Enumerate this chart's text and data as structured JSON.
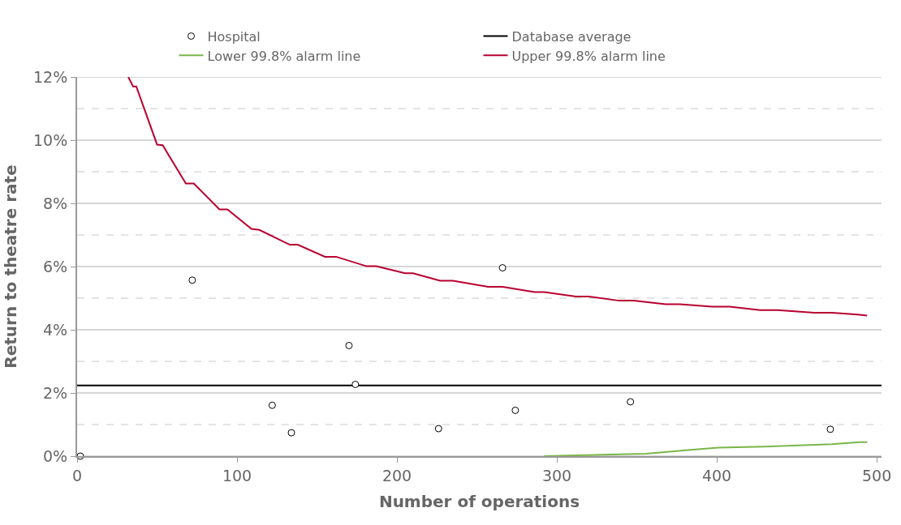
{
  "chart_data": {
    "type": "line",
    "xlabel": "Number of operations",
    "ylabel": "Return to theatre rate",
    "xlim": [
      0,
      503
    ],
    "xticks": [
      0,
      100,
      200,
      300,
      400,
      500
    ],
    "ylim": [
      0,
      12
    ],
    "yticks": [
      {
        "value": 0,
        "label": "0%"
      },
      {
        "value": 1,
        "label": null
      },
      {
        "value": 2,
        "label": "2%"
      },
      {
        "value": 3,
        "label": null
      },
      {
        "value": 4,
        "label": "4%"
      },
      {
        "value": 5,
        "label": null
      },
      {
        "value": 6,
        "label": "6%"
      },
      {
        "value": 7,
        "label": null
      },
      {
        "value": 8,
        "label": "8%"
      },
      {
        "value": 9,
        "label": null
      },
      {
        "value": 10,
        "label": "10%"
      },
      {
        "value": 11,
        "label": null
      },
      {
        "value": 12,
        "label": "12%"
      }
    ],
    "grid": "y",
    "legend": "top",
    "series": [
      {
        "name": "Hospital",
        "type": "scatter",
        "marker": "circle",
        "color": "#ffffff",
        "x": [
          2,
          72,
          122,
          134,
          170,
          174,
          226,
          266,
          274,
          346,
          471
        ],
        "values": [
          0,
          5.57,
          1.61,
          0.74,
          3.5,
          2.27,
          0.87,
          5.96,
          1.45,
          1.72,
          0.85
        ]
      },
      {
        "name": "Database average",
        "color": "#000000",
        "x": [
          0,
          503
        ],
        "values": [
          2.24,
          2.24
        ]
      },
      {
        "name": "Lower 99.8% alarm line",
        "color": "#7ab648",
        "x": [
          292,
          356,
          382,
          401,
          430,
          472,
          489,
          494
        ],
        "values": [
          0,
          0.08,
          0.19,
          0.27,
          0.3,
          0.38,
          0.44,
          0.44
        ]
      },
      {
        "name": "Upper 99.8% alarm line",
        "color": "#b8002e",
        "x": [
          32,
          35,
          37,
          50,
          53.5,
          68,
          73,
          89,
          94,
          109,
          114,
          133,
          138,
          155,
          162,
          181,
          187,
          205,
          210,
          227,
          235,
          257,
          266,
          286,
          292,
          312,
          320,
          339,
          348,
          368,
          377,
          397,
          408,
          427,
          438,
          461,
          472,
          488,
          494
        ],
        "values": [
          12,
          11.7,
          11.7,
          9.86,
          9.84,
          8.63,
          8.63,
          7.81,
          7.81,
          7.19,
          7.16,
          6.69,
          6.69,
          6.31,
          6.31,
          6.01,
          6.01,
          5.79,
          5.79,
          5.55,
          5.55,
          5.36,
          5.36,
          5.19,
          5.19,
          5.05,
          5.05,
          4.92,
          4.92,
          4.81,
          4.81,
          4.73,
          4.73,
          4.62,
          4.62,
          4.54,
          4.54,
          4.48,
          4.45
        ]
      }
    ]
  }
}
